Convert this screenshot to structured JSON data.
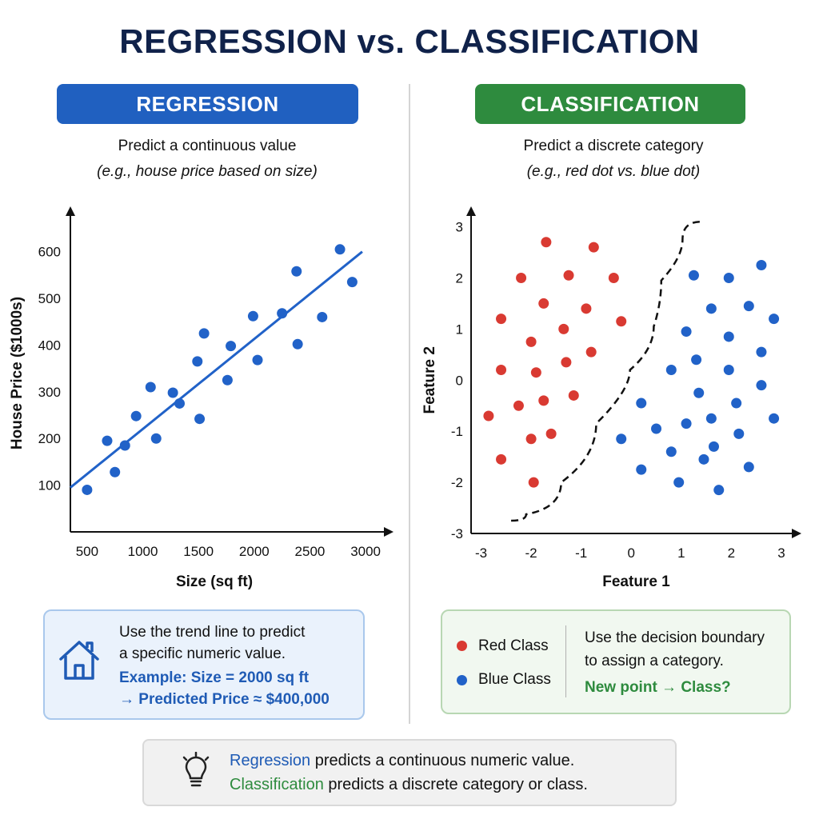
{
  "title": "REGRESSION vs. CLASSIFICATION",
  "colors": {
    "regression": "#2060c0",
    "classification": "#2e8b3e",
    "red_point": "#d93a32",
    "blue_point": "#2162c8"
  },
  "regression": {
    "badge": "REGRESSION",
    "subtitle": "Predict a continuous value",
    "example": "(e.g., house price based on size)",
    "info_line1": "Use the trend line to predict",
    "info_line2": "a specific numeric value.",
    "info_example1": "Example: Size = 2000 sq ft",
    "info_example2": "→ Predicted Price ≈ $400,000",
    "icon": "house-icon"
  },
  "classification": {
    "badge": "CLASSIFICATION",
    "subtitle": "Predict a discrete category",
    "example": "(e.g., red dot vs. blue dot)",
    "legend_red": "Red Class",
    "legend_blue": "Blue Class",
    "info_line1": "Use the decision boundary",
    "info_line2": "to assign a category.",
    "info_question": "New point → Class?"
  },
  "summary": {
    "icon": "lightbulb-icon",
    "line1_key": "Regression",
    "line1_rest": " predicts a continuous numeric value.",
    "line2_key": "Classification",
    "line2_rest": " predicts a discrete category or class."
  },
  "chart_data": [
    {
      "type": "scatter",
      "title": "",
      "xlabel": "Size (sq ft)",
      "ylabel": "House Price ($1000s)",
      "xticks": [
        500,
        1000,
        1500,
        2000,
        2500,
        3000
      ],
      "yticks": [
        100,
        200,
        300,
        400,
        500,
        600
      ],
      "xlim": [
        350,
        3150
      ],
      "ylim": [
        0,
        680
      ],
      "grid": false,
      "points": [
        [
          500,
          90
        ],
        [
          680,
          195
        ],
        [
          750,
          128
        ],
        [
          840,
          185
        ],
        [
          940,
          248
        ],
        [
          1070,
          310
        ],
        [
          1120,
          200
        ],
        [
          1270,
          298
        ],
        [
          1330,
          275
        ],
        [
          1490,
          365
        ],
        [
          1510,
          242
        ],
        [
          1550,
          425
        ],
        [
          1760,
          325
        ],
        [
          1790,
          398
        ],
        [
          1990,
          462
        ],
        [
          2030,
          368
        ],
        [
          2250,
          468
        ],
        [
          2380,
          558
        ],
        [
          2390,
          402
        ],
        [
          2610,
          460
        ],
        [
          2770,
          605
        ],
        [
          2880,
          535
        ]
      ],
      "trend_line": {
        "x": [
          350,
          2970
        ],
        "y": [
          95,
          600
        ]
      }
    },
    {
      "type": "scatter",
      "title": "",
      "xlabel": "Feature 1",
      "ylabel": "Feature 2",
      "xticks": [
        -3,
        -2,
        -1,
        0,
        1,
        2,
        3
      ],
      "yticks": [
        -3,
        -2,
        -1,
        0,
        1,
        2,
        3
      ],
      "xlim": [
        -3.2,
        3.4
      ],
      "ylim": [
        -3,
        3.4
      ],
      "grid": false,
      "legend": "bottom",
      "series": [
        {
          "name": "Red Class",
          "color": "#d93a32",
          "points": [
            [
              -1.7,
              2.7
            ],
            [
              -0.75,
              2.6
            ],
            [
              -2.2,
              2.0
            ],
            [
              -1.25,
              2.05
            ],
            [
              -0.35,
              2.0
            ],
            [
              -1.75,
              1.5
            ],
            [
              -2.6,
              1.2
            ],
            [
              -0.9,
              1.4
            ],
            [
              -0.2,
              1.15
            ],
            [
              -2.0,
              0.75
            ],
            [
              -1.35,
              1.0
            ],
            [
              -0.8,
              0.55
            ],
            [
              -1.3,
              0.35
            ],
            [
              -2.6,
              0.2
            ],
            [
              -1.9,
              0.15
            ],
            [
              -1.15,
              -0.3
            ],
            [
              -2.25,
              -0.5
            ],
            [
              -1.75,
              -0.4
            ],
            [
              -2.85,
              -0.7
            ],
            [
              -2.0,
              -1.15
            ],
            [
              -1.6,
              -1.05
            ],
            [
              -2.6,
              -1.55
            ],
            [
              -1.95,
              -2.0
            ]
          ]
        },
        {
          "name": "Blue Class",
          "color": "#2162c8",
          "points": [
            [
              1.25,
              2.05
            ],
            [
              1.95,
              2.0
            ],
            [
              2.6,
              2.25
            ],
            [
              1.6,
              1.4
            ],
            [
              2.35,
              1.45
            ],
            [
              2.85,
              1.2
            ],
            [
              1.1,
              0.95
            ],
            [
              1.95,
              0.85
            ],
            [
              2.6,
              0.55
            ],
            [
              0.8,
              0.2
            ],
            [
              1.3,
              0.4
            ],
            [
              1.95,
              0.2
            ],
            [
              1.35,
              -0.25
            ],
            [
              2.6,
              -0.1
            ],
            [
              0.2,
              -0.45
            ],
            [
              1.1,
              -0.85
            ],
            [
              1.6,
              -0.75
            ],
            [
              2.1,
              -0.45
            ],
            [
              2.85,
              -0.75
            ],
            [
              0.5,
              -0.95
            ],
            [
              2.15,
              -1.05
            ],
            [
              -0.2,
              -1.15
            ],
            [
              0.8,
              -1.4
            ],
            [
              1.45,
              -1.55
            ],
            [
              1.65,
              -1.3
            ],
            [
              0.2,
              -1.75
            ],
            [
              2.35,
              -1.7
            ],
            [
              0.95,
              -2.0
            ],
            [
              1.75,
              -2.15
            ]
          ]
        }
      ],
      "decision_boundary": [
        [
          -2.4,
          -2.75
        ],
        [
          -1.8,
          -2.5
        ],
        [
          -1.0,
          -1.5
        ],
        [
          -0.4,
          -0.2
        ],
        [
          0.35,
          0.6
        ],
        [
          0.55,
          1.5
        ],
        [
          0.65,
          2.4
        ],
        [
          1.4,
          3.1
        ]
      ]
    }
  ]
}
